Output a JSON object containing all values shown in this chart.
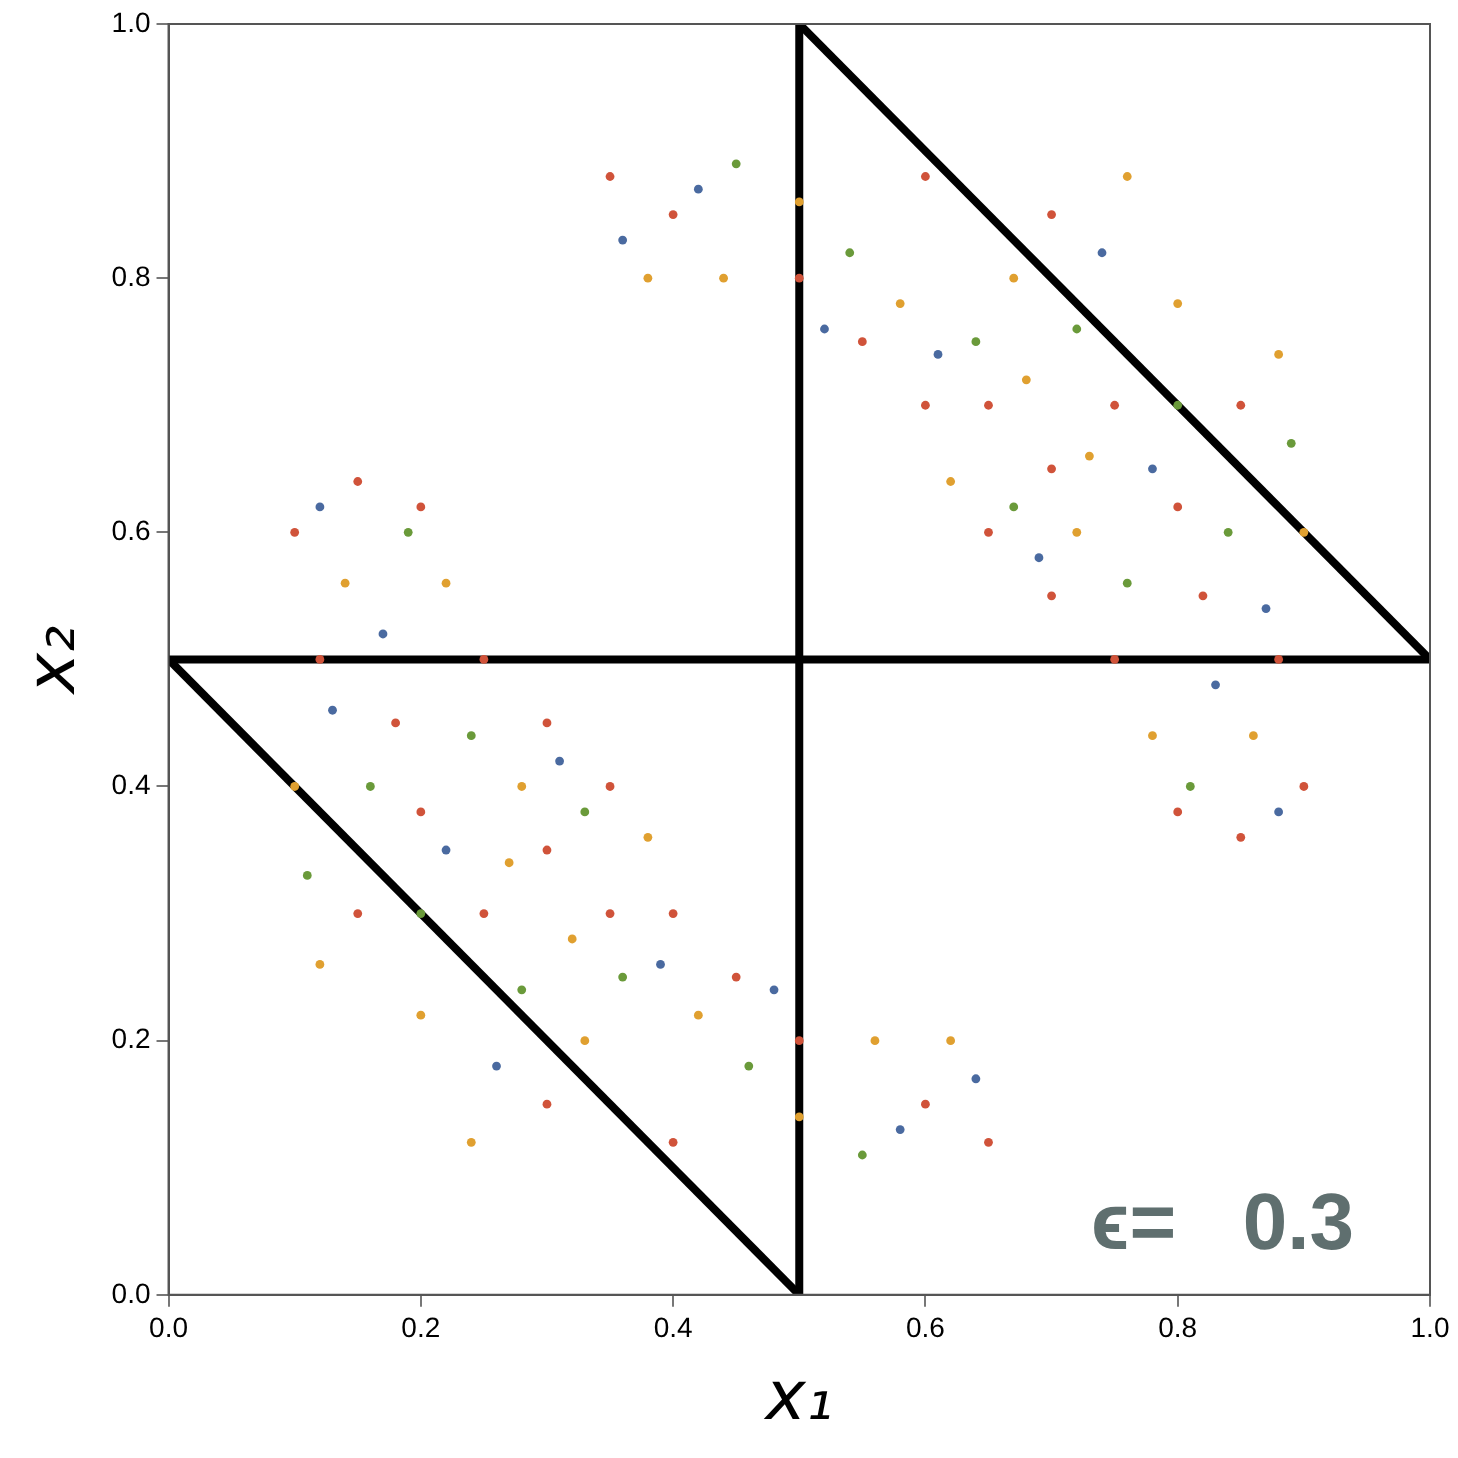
{
  "chart_data": {
    "type": "scatter",
    "xlabel": "x₁",
    "ylabel": "x₂",
    "xlim": [
      0,
      1
    ],
    "ylim": [
      0,
      1
    ],
    "xticks": [
      {
        "value": 0,
        "label": "0.0"
      },
      {
        "value": 0.2,
        "label": "0.2"
      },
      {
        "value": 0.4,
        "label": "0.4"
      },
      {
        "value": 0.6,
        "label": "0.6"
      },
      {
        "value": 0.8,
        "label": "0.8"
      },
      {
        "value": 1,
        "label": "1.0"
      }
    ],
    "yticks": [
      {
        "value": 0,
        "label": "0.0"
      },
      {
        "value": 0.2,
        "label": "0.2"
      },
      {
        "value": 0.4,
        "label": "0.4"
      },
      {
        "value": 0.6,
        "label": "0.6"
      },
      {
        "value": 0.8,
        "label": "0.8"
      },
      {
        "value": 1,
        "label": "1.0"
      }
    ],
    "grid": false,
    "marker": "circle",
    "annotations": [
      "ϵ=   0.3"
    ],
    "series": [
      {
        "color": "#d0533a",
        "x": [
          0.1,
          0.15,
          0.2,
          0.12,
          0.18,
          0.25,
          0.3,
          0.35,
          0.3,
          0.25,
          0.35,
          0.4,
          0.45,
          0.5,
          0.6,
          0.65,
          0.4,
          0.3,
          0.15,
          0.2,
          0.9,
          0.85,
          0.8,
          0.88,
          0.82,
          0.75,
          0.7,
          0.65,
          0.7,
          0.75,
          0.65,
          0.6,
          0.55,
          0.5,
          0.4,
          0.35,
          0.6,
          0.7,
          0.85,
          0.8
        ],
        "values": [
          0.6,
          0.64,
          0.62,
          0.5,
          0.45,
          0.5,
          0.45,
          0.4,
          0.35,
          0.3,
          0.3,
          0.3,
          0.25,
          0.2,
          0.15,
          0.12,
          0.12,
          0.15,
          0.3,
          0.38,
          0.4,
          0.36,
          0.38,
          0.5,
          0.55,
          0.5,
          0.55,
          0.6,
          0.65,
          0.7,
          0.7,
          0.7,
          0.75,
          0.8,
          0.85,
          0.88,
          0.88,
          0.85,
          0.7,
          0.62
        ]
      },
      {
        "color": "#e0a030",
        "x": [
          0.1,
          0.14,
          0.22,
          0.28,
          0.32,
          0.38,
          0.42,
          0.5,
          0.56,
          0.62,
          0.33,
          0.24,
          0.12,
          0.2,
          0.27,
          0.9,
          0.86,
          0.78,
          0.72,
          0.68,
          0.62,
          0.58,
          0.5,
          0.44,
          0.38,
          0.67,
          0.76,
          0.88,
          0.8,
          0.73
        ],
        "values": [
          0.4,
          0.56,
          0.56,
          0.4,
          0.28,
          0.36,
          0.22,
          0.14,
          0.2,
          0.2,
          0.2,
          0.12,
          0.26,
          0.22,
          0.34,
          0.6,
          0.44,
          0.44,
          0.6,
          0.72,
          0.64,
          0.78,
          0.86,
          0.8,
          0.8,
          0.8,
          0.88,
          0.74,
          0.78,
          0.66
        ]
      },
      {
        "color": "#6a9a3a",
        "x": [
          0.11,
          0.16,
          0.24,
          0.33,
          0.36,
          0.46,
          0.55,
          0.28,
          0.19,
          0.2,
          0.89,
          0.84,
          0.76,
          0.67,
          0.64,
          0.54,
          0.45,
          0.72,
          0.81,
          0.8
        ],
        "values": [
          0.33,
          0.4,
          0.44,
          0.38,
          0.25,
          0.18,
          0.11,
          0.24,
          0.6,
          0.3,
          0.67,
          0.6,
          0.56,
          0.62,
          0.75,
          0.82,
          0.89,
          0.76,
          0.4,
          0.7
        ]
      },
      {
        "color": "#4a6aa0",
        "x": [
          0.13,
          0.22,
          0.31,
          0.39,
          0.48,
          0.58,
          0.26,
          0.17,
          0.12,
          0.64,
          0.87,
          0.78,
          0.69,
          0.61,
          0.52,
          0.42,
          0.74,
          0.83,
          0.88,
          0.36
        ],
        "values": [
          0.46,
          0.35,
          0.42,
          0.26,
          0.24,
          0.13,
          0.18,
          0.52,
          0.62,
          0.17,
          0.54,
          0.65,
          0.58,
          0.74,
          0.76,
          0.87,
          0.82,
          0.48,
          0.38,
          0.83
        ]
      },
      {
        "type": "line",
        "marker": "none",
        "color": "#000000",
        "x": [
          0,
          0.5
        ],
        "values": [
          0.5,
          0
        ]
      },
      {
        "type": "line",
        "marker": "none",
        "color": "#000000",
        "x": [
          0.5,
          1
        ],
        "values": [
          1,
          0.5
        ]
      },
      {
        "type": "line",
        "marker": "none",
        "color": "#000000",
        "x": [
          0,
          1
        ],
        "values": [
          0.5,
          0.5
        ]
      },
      {
        "type": "line",
        "marker": "none",
        "color": "#000000",
        "x": [
          0.5,
          0.5
        ],
        "values": [
          0,
          1
        ]
      }
    ]
  }
}
